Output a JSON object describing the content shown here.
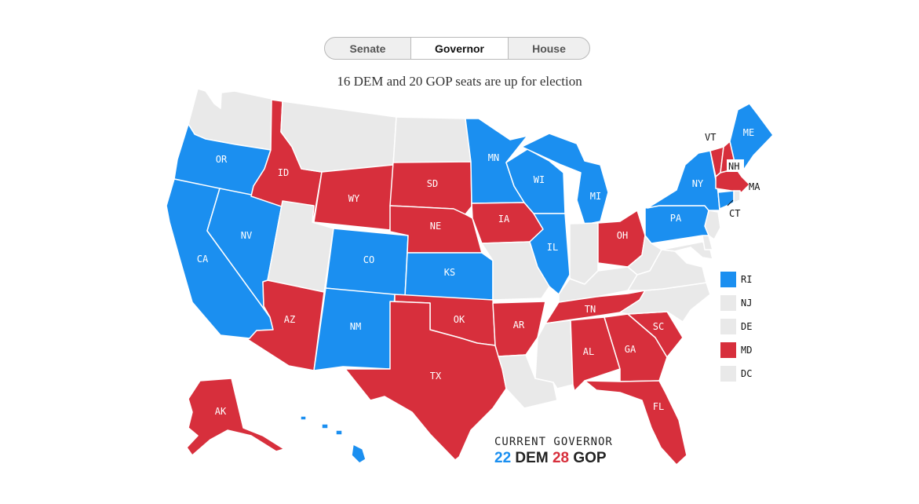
{
  "tabs": [
    {
      "label": "Senate",
      "active": false
    },
    {
      "label": "Governor",
      "active": true
    },
    {
      "label": "House",
      "active": false
    }
  ],
  "subtitle": "16 DEM and 20 GOP seats are up for election",
  "colors": {
    "dem": "#1b8ff0",
    "gop": "#d72f3c",
    "none": "#e9e9e9"
  },
  "states": {
    "WA": "none",
    "OR": "dem",
    "CA": "dem",
    "NV": "dem",
    "ID": "gop",
    "MT": "none",
    "WY": "gop",
    "UT": "none",
    "AZ": "gop",
    "NM": "dem",
    "CO": "dem",
    "ND": "none",
    "SD": "gop",
    "NE": "gop",
    "KS": "dem",
    "OK": "gop",
    "TX": "gop",
    "MN": "dem",
    "IA": "gop",
    "MO": "none",
    "AR": "gop",
    "LA": "none",
    "WI": "dem",
    "IL": "dem",
    "MI": "dem",
    "IN": "none",
    "OH": "gop",
    "KY": "none",
    "TN": "gop",
    "MS": "none",
    "AL": "gop",
    "GA": "gop",
    "FL": "gop",
    "SC": "gop",
    "NC": "none",
    "VA": "none",
    "WV": "none",
    "PA": "dem",
    "NY": "dem",
    "ME": "dem",
    "VT": "gop",
    "NH": "gop",
    "MA": "gop",
    "CT": "dem",
    "AK": "gop",
    "HI": "dem"
  },
  "map_labels": {
    "OR": "OR",
    "CA": "CA",
    "NV": "NV",
    "ID": "ID",
    "WY": "WY",
    "AZ": "AZ",
    "NM": "NM",
    "CO": "CO",
    "SD": "SD",
    "NE": "NE",
    "KS": "KS",
    "OK": "OK",
    "TX": "TX",
    "MN": "MN",
    "IA": "IA",
    "AR": "AR",
    "WI": "WI",
    "IL": "IL",
    "MI": "MI",
    "OH": "OH",
    "TN": "TN",
    "AL": "AL",
    "GA": "GA",
    "FL": "FL",
    "SC": "SC",
    "PA": "PA",
    "NY": "NY",
    "ME": "ME",
    "AK": "AK",
    "VT": "VT",
    "NH": "NH",
    "MA": "MA",
    "CT": "CT"
  },
  "legend": [
    {
      "label": "RI",
      "party": "dem"
    },
    {
      "label": "NJ",
      "party": "none"
    },
    {
      "label": "DE",
      "party": "none"
    },
    {
      "label": "MD",
      "party": "gop"
    },
    {
      "label": "DC",
      "party": "none"
    }
  ],
  "tally": {
    "heading": "CURRENT GOVERNOR",
    "dem_count": "22",
    "dem_label": "DEM",
    "gop_count": "28",
    "gop_label": "GOP"
  }
}
